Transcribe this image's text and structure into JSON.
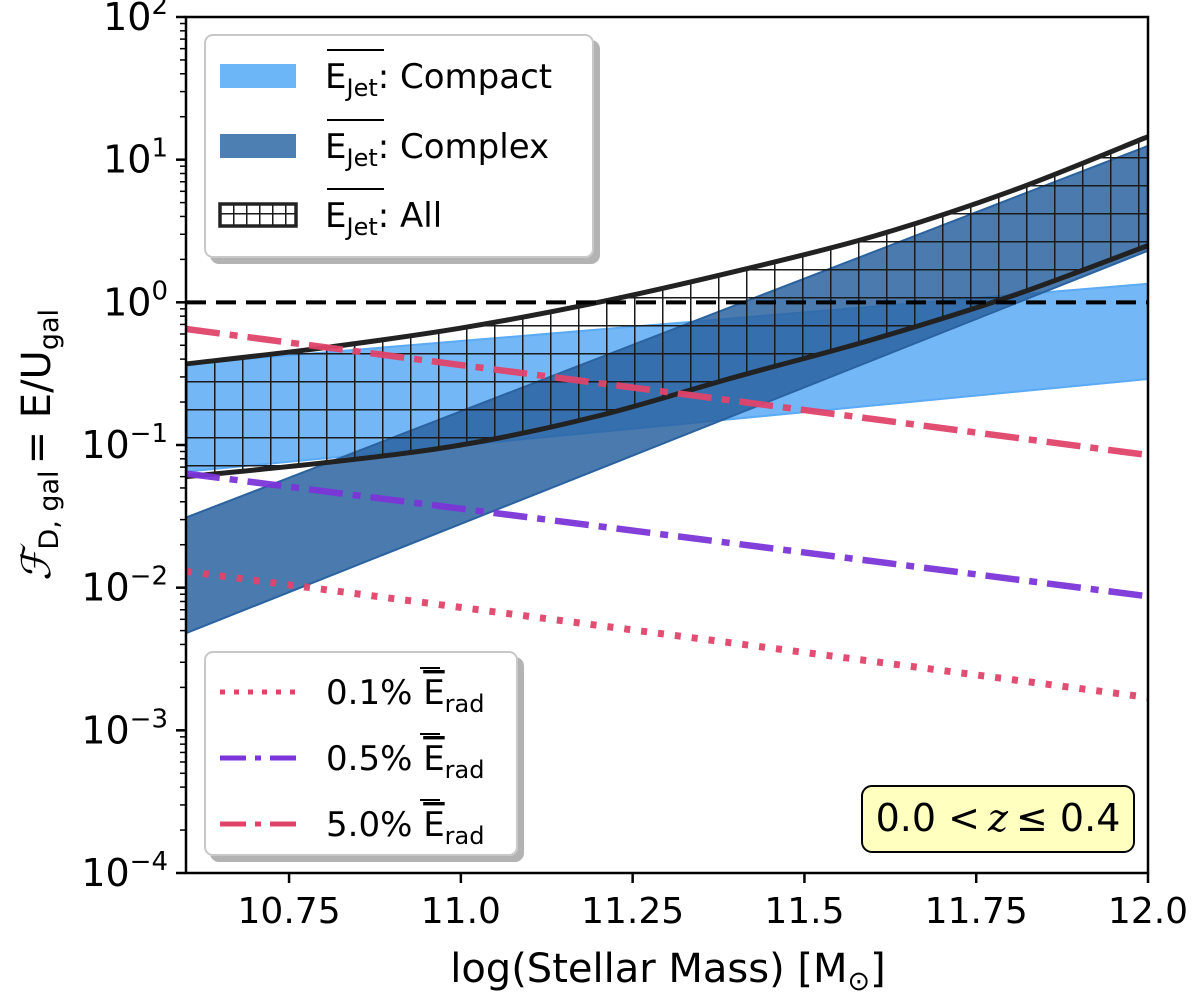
{
  "chart_data": {
    "type": "area",
    "title": "",
    "xlabel": "log(Stellar Mass) [M",
    "xlabel_sub": "⊙",
    "xlabel_end": "]",
    "ylabel": "= E/U",
    "ylabel_F": "ℱ",
    "ylabel_sub": "D, gal",
    "ylabel_sub2": "gal",
    "xlim": [
      10.6,
      12.0
    ],
    "ylim_log10": [
      -4,
      2
    ],
    "xscale": "linear",
    "yscale": "log",
    "xticks": [
      {
        "value": 10.75,
        "label": "10.75"
      },
      {
        "value": 11.0,
        "label": "11.0"
      },
      {
        "value": 11.25,
        "label": "11.25"
      },
      {
        "value": 11.5,
        "label": "11.5"
      },
      {
        "value": 11.75,
        "label": "11.75"
      },
      {
        "value": 12.0,
        "label": "12.0"
      }
    ],
    "yticks": [
      {
        "exp": 2,
        "base": "10",
        "sup": "2"
      },
      {
        "exp": 1,
        "base": "10",
        "sup": "1"
      },
      {
        "exp": 0,
        "base": "10",
        "sup": "0"
      },
      {
        "exp": -1,
        "base": "10",
        "sup": "−1"
      },
      {
        "exp": -2,
        "base": "10",
        "sup": "−2"
      },
      {
        "exp": -3,
        "base": "10",
        "sup": "−3"
      },
      {
        "exp": -4,
        "base": "10",
        "sup": "−4"
      }
    ],
    "bands": [
      {
        "name": "Compact",
        "color": "#5aaaf5",
        "opacity": 0.85,
        "x": [
          10.6,
          12.0
        ],
        "lower": [
          0.065,
          0.29
        ],
        "upper": [
          0.37,
          1.35
        ]
      },
      {
        "name": "Complex",
        "color": "#2a63a0",
        "opacity": 0.85,
        "x": [
          10.6,
          12.0
        ],
        "lower": [
          0.0048,
          2.3
        ],
        "upper": [
          0.031,
          12.5
        ]
      },
      {
        "name": "All",
        "color": "#222222",
        "hatch": "grid",
        "x": [
          10.6,
          10.8,
          11.0,
          11.2,
          11.4,
          11.6,
          11.8,
          12.0
        ],
        "lower": [
          0.06,
          0.075,
          0.1,
          0.16,
          0.3,
          0.55,
          1.1,
          2.5
        ],
        "upper": [
          0.37,
          0.48,
          0.66,
          1.0,
          1.65,
          2.9,
          6.0,
          14.5
        ]
      }
    ],
    "series": [
      {
        "name": "0.1%",
        "color": "#e0436a",
        "style": "dotted",
        "x": [
          10.6,
          12.0
        ],
        "y": [
          0.013,
          0.0017
        ]
      },
      {
        "name": "0.5%",
        "color": "#7b35d8",
        "style": "dashdot",
        "x": [
          10.6,
          12.0
        ],
        "y": [
          0.063,
          0.0087
        ]
      },
      {
        "name": "5.0%",
        "color": "#e0436a",
        "style": "dashdot",
        "x": [
          10.6,
          12.0
        ],
        "y": [
          0.65,
          0.085
        ]
      }
    ],
    "reference_line": {
      "y": 1.0,
      "style": "dashed",
      "color": "#000000"
    },
    "legend_top": {
      "placement": "top-left",
      "prefix": "E",
      "prefix_sub": "Jet",
      "entries": [
        {
          "label": ": Compact",
          "color": "#6cb6f7",
          "kind": "patch"
        },
        {
          "label": ": Complex",
          "color": "#4d7fb3",
          "kind": "patch"
        },
        {
          "label": ": All",
          "color": "#222222",
          "kind": "hatch"
        }
      ]
    },
    "legend_bottom": {
      "placement": "bottom-left",
      "suffix": "E",
      "suffix_sub": "rad",
      "entries": [
        {
          "label": "0.1%",
          "color": "#e0436a",
          "style": "dotted"
        },
        {
          "label": "0.5%",
          "color": "#7b35d8",
          "style": "dashdot"
        },
        {
          "label": "5.0%",
          "color": "#e0436a",
          "style": "dashdot"
        }
      ]
    },
    "annotation": {
      "text_left": "0.0 <",
      "text_var": "z",
      "text_right": "≤ 0.4",
      "placement": "bottom-right",
      "bg": "#ffffbf"
    }
  }
}
